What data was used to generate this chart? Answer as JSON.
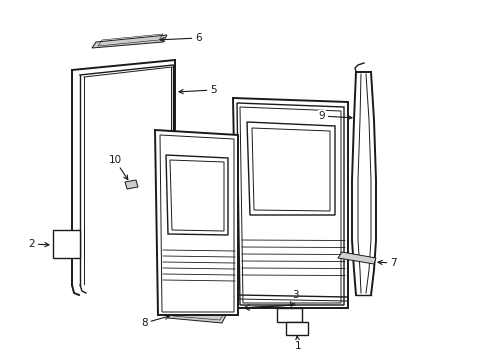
{
  "bg_color": "#ffffff",
  "line_color": "#1a1a1a",
  "label_color": "#000000",
  "figsize": [
    4.89,
    3.6
  ],
  "dpi": 100,
  "lw_thick": 1.4,
  "lw_med": 1.0,
  "lw_thin": 0.7
}
